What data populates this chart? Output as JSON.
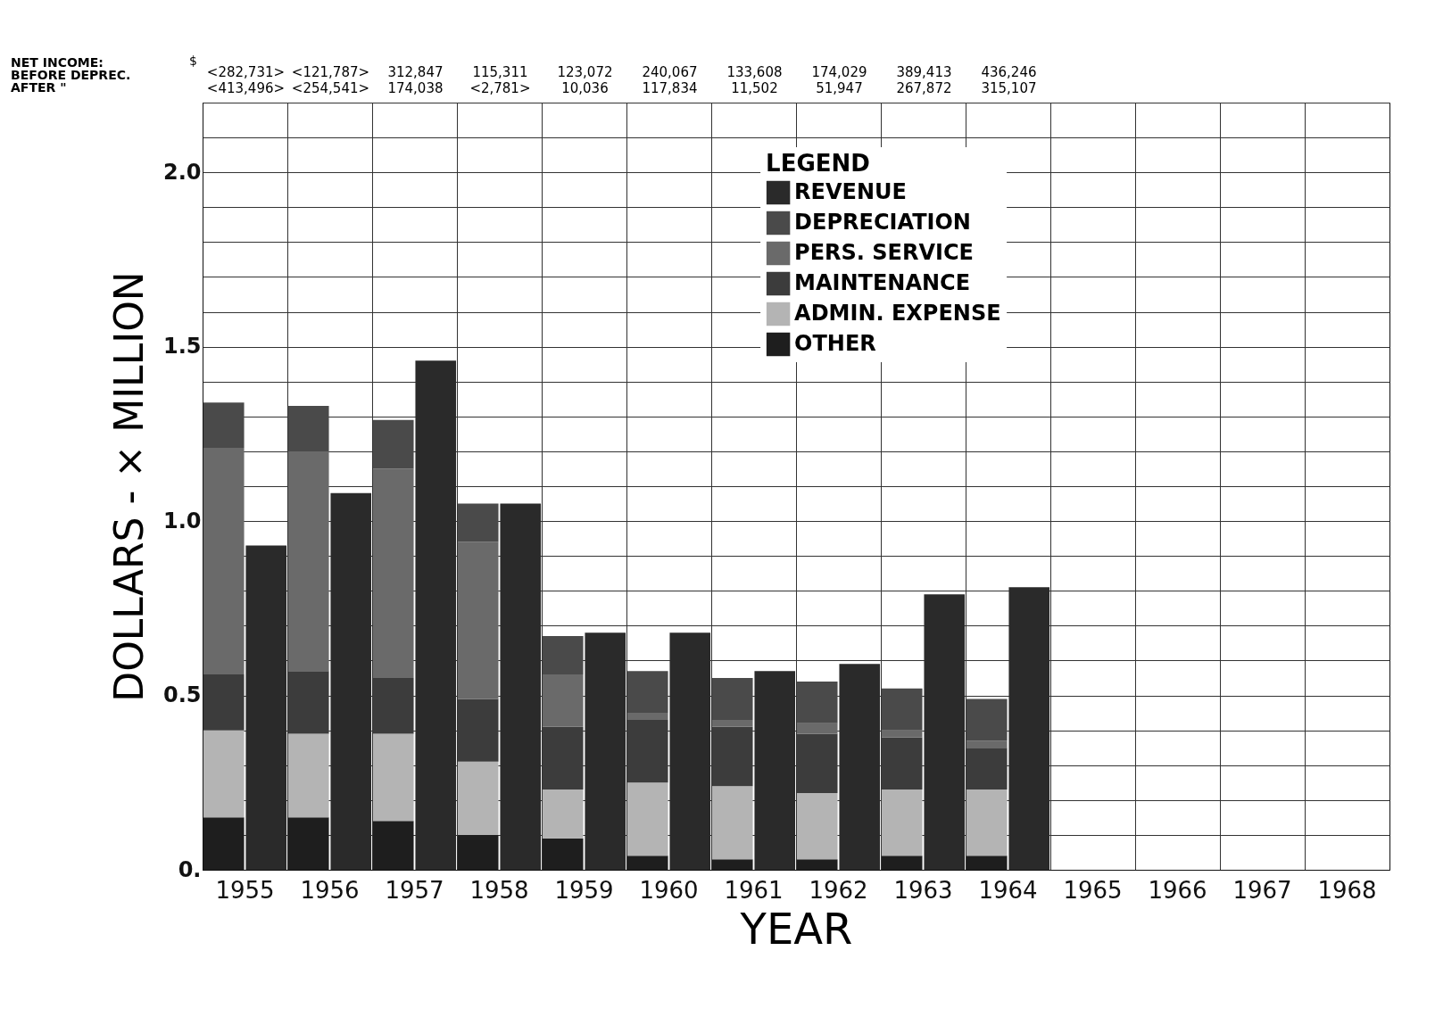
{
  "chart_data": {
    "type": "bar",
    "stacked": true,
    "xlabel": "YEAR",
    "ylabel": "DOLLARS - × MILLION",
    "legend_title": "LEGEND",
    "categories": [
      "1955",
      null,
      "1956",
      null,
      "1957",
      null,
      "1958",
      null,
      "1959",
      null,
      "1960",
      null,
      "1961",
      null,
      "1962",
      null,
      "1963",
      null,
      "1964",
      null,
      "1965",
      null,
      "1966",
      null,
      "1967",
      null,
      "1968",
      null
    ],
    "series": [
      {
        "name": "REVENUE",
        "color": "#2a2a2a",
        "values": [
          null,
          0.93,
          null,
          1.08,
          null,
          1.46,
          null,
          1.05,
          null,
          0.68,
          null,
          0.68,
          null,
          0.57,
          null,
          0.59,
          null,
          0.79,
          null,
          0.81,
          null,
          null,
          null,
          null,
          null,
          null,
          null,
          null
        ]
      },
      {
        "name": "OTHER",
        "color": "#1e1e1e",
        "values": [
          0.15,
          null,
          0.15,
          null,
          0.14,
          null,
          0.1,
          null,
          0.09,
          null,
          0.04,
          null,
          0.03,
          null,
          0.03,
          null,
          0.04,
          null,
          0.04,
          null,
          null,
          null,
          null,
          null,
          null,
          null,
          null,
          null
        ]
      },
      {
        "name": "ADMIN. EXPENSE",
        "color": "#b4b4b4",
        "values": [
          0.25,
          null,
          0.24,
          null,
          0.25,
          null,
          0.21,
          null,
          0.14,
          null,
          0.21,
          null,
          0.21,
          null,
          0.19,
          null,
          0.19,
          null,
          0.19,
          null,
          null,
          null,
          null,
          null,
          null,
          null,
          null,
          null
        ]
      },
      {
        "name": "MAINTENANCE",
        "color": "#3c3c3c",
        "values": [
          0.16,
          null,
          0.18,
          null,
          0.16,
          null,
          0.18,
          null,
          0.18,
          null,
          0.18,
          null,
          0.17,
          null,
          0.17,
          null,
          0.15,
          null,
          0.12,
          null,
          null,
          null,
          null,
          null,
          null,
          null,
          null,
          null
        ]
      },
      {
        "name": "PERS. SERVICE",
        "color": "#6a6a6a",
        "values": [
          0.65,
          null,
          0.63,
          null,
          0.6,
          null,
          0.45,
          null,
          0.15,
          null,
          0.02,
          null,
          0.02,
          null,
          0.03,
          null,
          0.02,
          null,
          0.02,
          null,
          null,
          null,
          null,
          null,
          null,
          null,
          null,
          null
        ]
      },
      {
        "name": "DEPRECIATION",
        "color": "#4a4a4a",
        "values": [
          0.13,
          null,
          0.13,
          null,
          0.14,
          null,
          0.11,
          null,
          0.11,
          null,
          0.12,
          null,
          0.12,
          null,
          0.12,
          null,
          0.12,
          null,
          0.12,
          null,
          null,
          null,
          null,
          null,
          null,
          null,
          null,
          null
        ]
      }
    ],
    "ylim": [
      0,
      2.2
    ],
    "yticks": [
      {
        "value": 0,
        "label": "0."
      },
      {
        "value": 0.1,
        "label": null
      },
      {
        "value": 0.2,
        "label": null
      },
      {
        "value": 0.3,
        "label": null
      },
      {
        "value": 0.4,
        "label": null
      },
      0.5,
      {
        "value": 0.6,
        "label": null
      },
      {
        "value": 0.7,
        "label": null
      },
      {
        "value": 0.8,
        "label": null
      },
      {
        "value": 0.9,
        "label": null
      },
      {
        "value": 1.0,
        "label": "1.0"
      },
      {
        "value": 1.1,
        "label": null
      },
      {
        "value": 1.2,
        "label": null
      },
      {
        "value": 1.3,
        "label": null
      },
      {
        "value": 1.4,
        "label": null
      },
      1.5,
      {
        "value": 1.6,
        "label": null
      },
      {
        "value": 1.7,
        "label": null
      },
      {
        "value": 1.8,
        "label": null
      },
      {
        "value": 1.9,
        "label": null
      },
      {
        "value": 2.0,
        "label": "2.0"
      },
      {
        "value": 2.1,
        "label": null
      },
      {
        "value": 2.2,
        "label": null
      }
    ],
    "grid": true,
    "legend": "top",
    "annotations": [
      "NET INCOME:",
      "BEFORE DEPREC.",
      "AFTER      \"",
      "$",
      "<282,731>",
      "<413,496>",
      "<121,787>",
      "<254,541>",
      "312,847",
      "174,038",
      "115,311",
      "<2,781>",
      "123,072",
      "10,036",
      "240,067",
      "117,834",
      "133,608",
      "11,502",
      "174,029",
      "51,947",
      "389,413",
      "267,872",
      "436,246",
      "315,107"
    ]
  }
}
